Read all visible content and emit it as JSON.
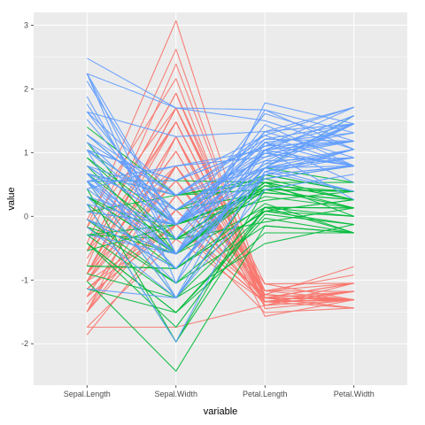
{
  "chart_data": {
    "type": "line",
    "subtype": "parallel-coordinates",
    "title": "",
    "xlabel": "variable",
    "ylabel": "value",
    "categories": [
      "Sepal.Length",
      "Sepal.Width",
      "Petal.Length",
      "Petal.Width"
    ],
    "ylim": [
      -2.65,
      3.2
    ],
    "yticks": [
      -2,
      -1,
      0,
      1,
      2,
      3
    ],
    "ytick_labels": [
      "-2",
      "-1",
      "0",
      "1",
      "2",
      "3"
    ],
    "grid": true,
    "legend": "none",
    "background": "#ebebeb",
    "gridline_color": "#ffffff",
    "series": [
      {
        "color": "#F8766D",
        "lines": [
          [
            -0.9,
            1.02,
            -1.34,
            -1.31
          ],
          [
            -1.14,
            -0.13,
            -1.34,
            -1.31
          ],
          [
            -1.38,
            0.33,
            -1.4,
            -1.31
          ],
          [
            -1.5,
            0.1,
            -1.28,
            -1.31
          ],
          [
            -1.02,
            1.25,
            -1.34,
            -1.31
          ],
          [
            -0.54,
            1.93,
            -1.17,
            -1.05
          ],
          [
            -1.5,
            0.79,
            -1.34,
            -1.18
          ],
          [
            -1.02,
            0.79,
            -1.28,
            -1.31
          ],
          [
            -1.74,
            -0.36,
            -1.34,
            -1.31
          ],
          [
            -1.14,
            0.1,
            -1.28,
            -1.44
          ],
          [
            -0.54,
            1.48,
            -1.28,
            -1.31
          ],
          [
            -1.26,
            0.79,
            -1.23,
            -1.31
          ],
          [
            -1.26,
            -0.13,
            -1.34,
            -1.44
          ],
          [
            -1.86,
            -0.13,
            -1.51,
            -1.44
          ],
          [
            -0.05,
            2.16,
            -1.45,
            -1.31
          ],
          [
            -0.17,
            3.07,
            -1.28,
            -1.05
          ],
          [
            -0.54,
            1.93,
            -1.4,
            -1.05
          ],
          [
            -0.9,
            1.02,
            -1.34,
            -1.18
          ],
          [
            -0.17,
            1.7,
            -1.17,
            -1.18
          ],
          [
            -0.9,
            1.7,
            -1.28,
            -1.18
          ],
          [
            -0.54,
            0.79,
            -1.17,
            -1.31
          ],
          [
            -0.9,
            1.48,
            -1.28,
            -1.05
          ],
          [
            -1.5,
            1.25,
            -1.57,
            -1.31
          ],
          [
            -0.9,
            0.56,
            -1.17,
            -0.92
          ],
          [
            -1.26,
            0.79,
            -1.06,
            -1.31
          ],
          [
            -1.02,
            -0.13,
            -1.23,
            -1.31
          ],
          [
            -0.78,
            2.39,
            -1.28,
            -1.44
          ],
          [
            -0.42,
            2.62,
            -1.34,
            -1.31
          ],
          [
            -1.74,
            -1.74,
            -1.4,
            -1.18
          ],
          [
            -1.02,
            1.25,
            -1.23,
            -0.79
          ],
          [
            -0.9,
            1.7,
            -1.06,
            -1.05
          ],
          [
            -1.26,
            -0.13,
            -1.34,
            -1.18
          ],
          [
            -0.9,
            1.7,
            -1.23,
            -1.31
          ],
          [
            -1.5,
            0.33,
            -1.34,
            -1.31
          ],
          [
            -0.66,
            1.48,
            -1.28,
            -1.31
          ],
          [
            -1.02,
            0.56,
            -1.34,
            -1.31
          ]
        ]
      },
      {
        "color": "#00BA38",
        "lines": [
          [
            1.4,
            0.33,
            0.53,
            0.26
          ],
          [
            0.67,
            0.33,
            0.42,
            0.39
          ],
          [
            1.28,
            0.1,
            0.65,
            0.39
          ],
          [
            -0.42,
            -1.74,
            0.14,
            0.13
          ],
          [
            0.79,
            -0.59,
            0.48,
            0.39
          ],
          [
            -0.17,
            -0.59,
            0.42,
            0.13
          ],
          [
            0.55,
            0.56,
            0.53,
            0.53
          ],
          [
            -1.14,
            -1.51,
            -0.26,
            -0.26
          ],
          [
            0.92,
            -0.36,
            0.48,
            0.13
          ],
          [
            -0.78,
            -0.82,
            0.08,
            0.26
          ],
          [
            -1.02,
            -2.43,
            -0.15,
            -0.26
          ],
          [
            0.07,
            -0.13,
            0.25,
            0.39
          ],
          [
            0.19,
            -1.97,
            0.14,
            -0.26
          ],
          [
            0.31,
            -0.36,
            0.53,
            0.26
          ],
          [
            -0.29,
            -0.36,
            -0.09,
            0.13
          ],
          [
            1.04,
            0.1,
            0.37,
            0.26
          ],
          [
            -0.29,
            -0.13,
            0.42,
            0.39
          ],
          [
            -0.05,
            -0.82,
            0.2,
            -0.26
          ],
          [
            0.43,
            -1.97,
            0.42,
            0.39
          ],
          [
            -0.29,
            -1.28,
            0.08,
            -0.13
          ],
          [
            0.07,
            0.33,
            0.59,
            0.79
          ],
          [
            0.31,
            -0.59,
            0.14,
            0.13
          ],
          [
            0.55,
            -1.28,
            0.65,
            0.39
          ],
          [
            0.31,
            -0.59,
            0.53,
            0.0
          ],
          [
            0.67,
            -0.36,
            0.31,
            0.13
          ],
          [
            0.92,
            -0.13,
            0.37,
            0.26
          ],
          [
            1.16,
            -0.59,
            0.59,
            0.26
          ],
          [
            -0.17,
            -1.05,
            -0.15,
            -0.26
          ],
          [
            -0.42,
            -1.51,
            0.03,
            -0.13
          ],
          [
            -0.42,
            -1.51,
            -0.03,
            -0.26
          ],
          [
            -0.05,
            -0.82,
            0.08,
            0.0
          ],
          [
            0.19,
            -0.82,
            0.76,
            0.53
          ],
          [
            -0.54,
            -0.13,
            0.42,
            0.39
          ],
          [
            -0.05,
            -1.05,
            0.14,
            0.0
          ],
          [
            -0.9,
            -1.28,
            -0.43,
            -0.13
          ],
          [
            -0.05,
            -0.59,
            0.76,
            1.58
          ],
          [
            -0.78,
            -0.82,
            0.08,
            0.26
          ]
        ]
      },
      {
        "color": "#619CFF",
        "lines": [
          [
            0.55,
            0.56,
            1.27,
            1.71
          ],
          [
            -0.05,
            -0.82,
            0.76,
            0.92
          ],
          [
            1.52,
            -0.13,
            1.21,
            1.18
          ],
          [
            0.55,
            -0.36,
            1.04,
            0.79
          ],
          [
            0.79,
            -0.13,
            1.16,
            1.31
          ],
          [
            2.12,
            -0.13,
            1.61,
            1.18
          ],
          [
            -1.14,
            -1.28,
            0.42,
            0.66
          ],
          [
            1.76,
            -0.36,
            1.44,
            0.79
          ],
          [
            1.04,
            -1.28,
            1.16,
            0.79
          ],
          [
            1.64,
            1.25,
            1.33,
            1.71
          ],
          [
            0.79,
            0.33,
            0.76,
            1.05
          ],
          [
            0.67,
            -0.82,
            0.87,
            0.92
          ],
          [
            1.16,
            -0.13,
            0.99,
            1.18
          ],
          [
            -0.17,
            -1.28,
            0.7,
            1.05
          ],
          [
            -0.05,
            -0.59,
            0.76,
            1.58
          ],
          [
            0.67,
            0.33,
            0.87,
            1.45
          ],
          [
            0.79,
            -0.13,
            0.99,
            0.79
          ],
          [
            2.24,
            1.7,
            1.67,
            1.31
          ],
          [
            2.24,
            -1.05,
            1.78,
            1.45
          ],
          [
            0.19,
            -1.97,
            0.7,
            0.39
          ],
          [
            1.28,
            0.33,
            1.1,
            1.45
          ],
          [
            -0.29,
            -0.59,
            0.65,
            1.05
          ],
          [
            2.24,
            -0.59,
            1.67,
            1.05
          ],
          [
            0.55,
            -0.82,
            0.65,
            0.79
          ],
          [
            1.04,
            0.56,
            1.1,
            1.18
          ],
          [
            1.64,
            0.33,
            1.27,
            0.79
          ],
          [
            0.43,
            -0.59,
            0.59,
            0.79
          ],
          [
            0.31,
            -0.13,
            0.65,
            0.79
          ],
          [
            0.67,
            -0.59,
            1.04,
            1.18
          ],
          [
            1.64,
            -0.13,
            1.16,
            0.53
          ],
          [
            1.88,
            -0.59,
            1.33,
            0.92
          ],
          [
            2.48,
            1.7,
            1.5,
            1.05
          ],
          [
            0.67,
            -0.59,
            1.04,
            1.31
          ],
          [
            0.55,
            -0.59,
            0.76,
            0.39
          ],
          [
            0.31,
            -1.05,
            1.04,
            0.26
          ],
          [
            2.24,
            -0.13,
            1.33,
            1.45
          ],
          [
            0.55,
            0.79,
            1.04,
            1.58
          ],
          [
            0.67,
            0.1,
            0.99,
            0.79
          ],
          [
            0.19,
            -0.13,
            0.59,
            0.79
          ],
          [
            1.28,
            0.1,
            0.93,
            1.18
          ],
          [
            1.04,
            0.1,
            1.04,
            1.58
          ],
          [
            1.28,
            0.1,
            0.76,
            1.45
          ],
          [
            -0.05,
            -0.82,
            0.76,
            0.92
          ],
          [
            1.16,
            0.33,
            1.21,
            1.45
          ],
          [
            1.04,
            0.56,
            1.1,
            1.71
          ],
          [
            1.04,
            -0.13,
            0.82,
            1.45
          ],
          [
            0.55,
            -1.28,
            0.7,
            0.92
          ],
          [
            0.79,
            -0.13,
            0.82,
            1.05
          ],
          [
            0.43,
            0.79,
            0.93,
            1.45
          ],
          [
            0.07,
            -0.13,
            0.76,
            0.79
          ]
        ]
      }
    ]
  }
}
